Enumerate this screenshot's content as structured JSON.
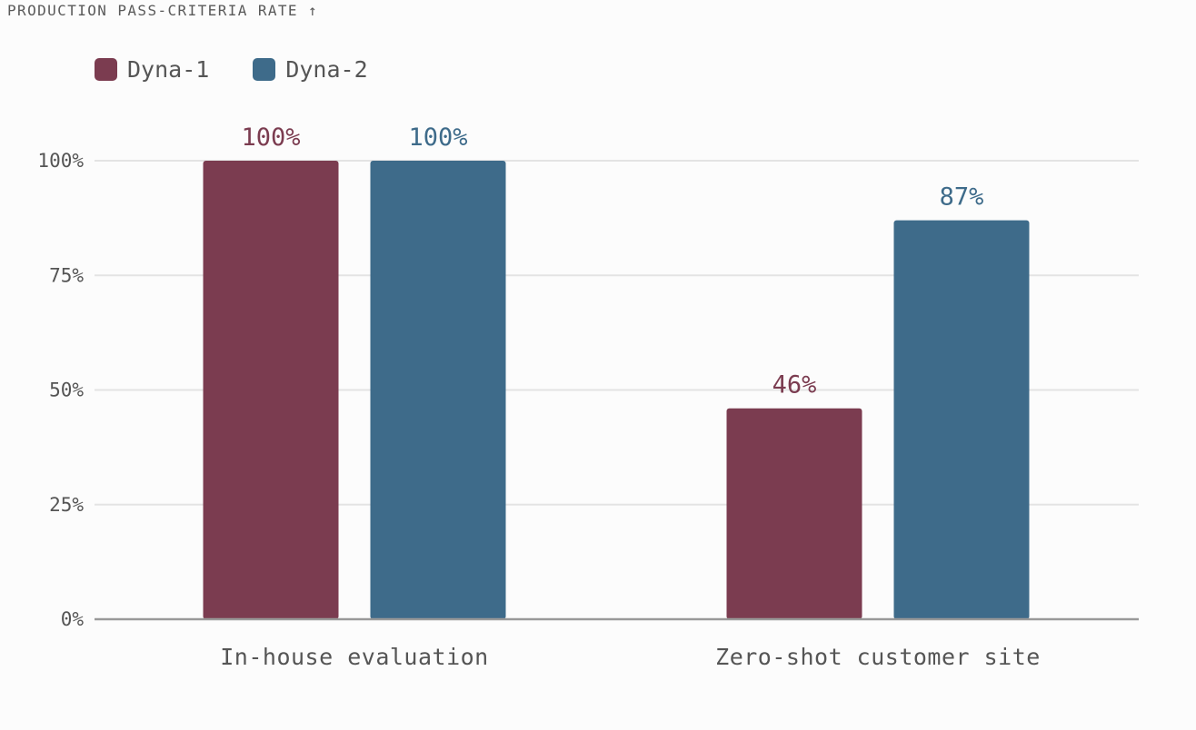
{
  "chart_data": {
    "type": "bar",
    "title": "PRODUCTION PASS-CRITERIA RATE ↑",
    "categories": [
      "In-house evaluation",
      "Zero-shot customer site"
    ],
    "series": [
      {
        "name": "Dyna-1",
        "values": [
          100,
          46
        ],
        "color": "#7b3c50"
      },
      {
        "name": "Dyna-2",
        "values": [
          100,
          87
        ],
        "color": "#3e6b8a"
      }
    ],
    "ylim": [
      0,
      100
    ],
    "yticks": [
      0,
      25,
      50,
      75,
      100
    ],
    "ytick_labels": [
      "0%",
      "25%",
      "50%",
      "75%",
      "100%"
    ],
    "data_labels": [
      [
        "100%",
        "46%"
      ],
      [
        "100%",
        "87%"
      ]
    ],
    "grid": true,
    "legend_position": "top-left"
  }
}
